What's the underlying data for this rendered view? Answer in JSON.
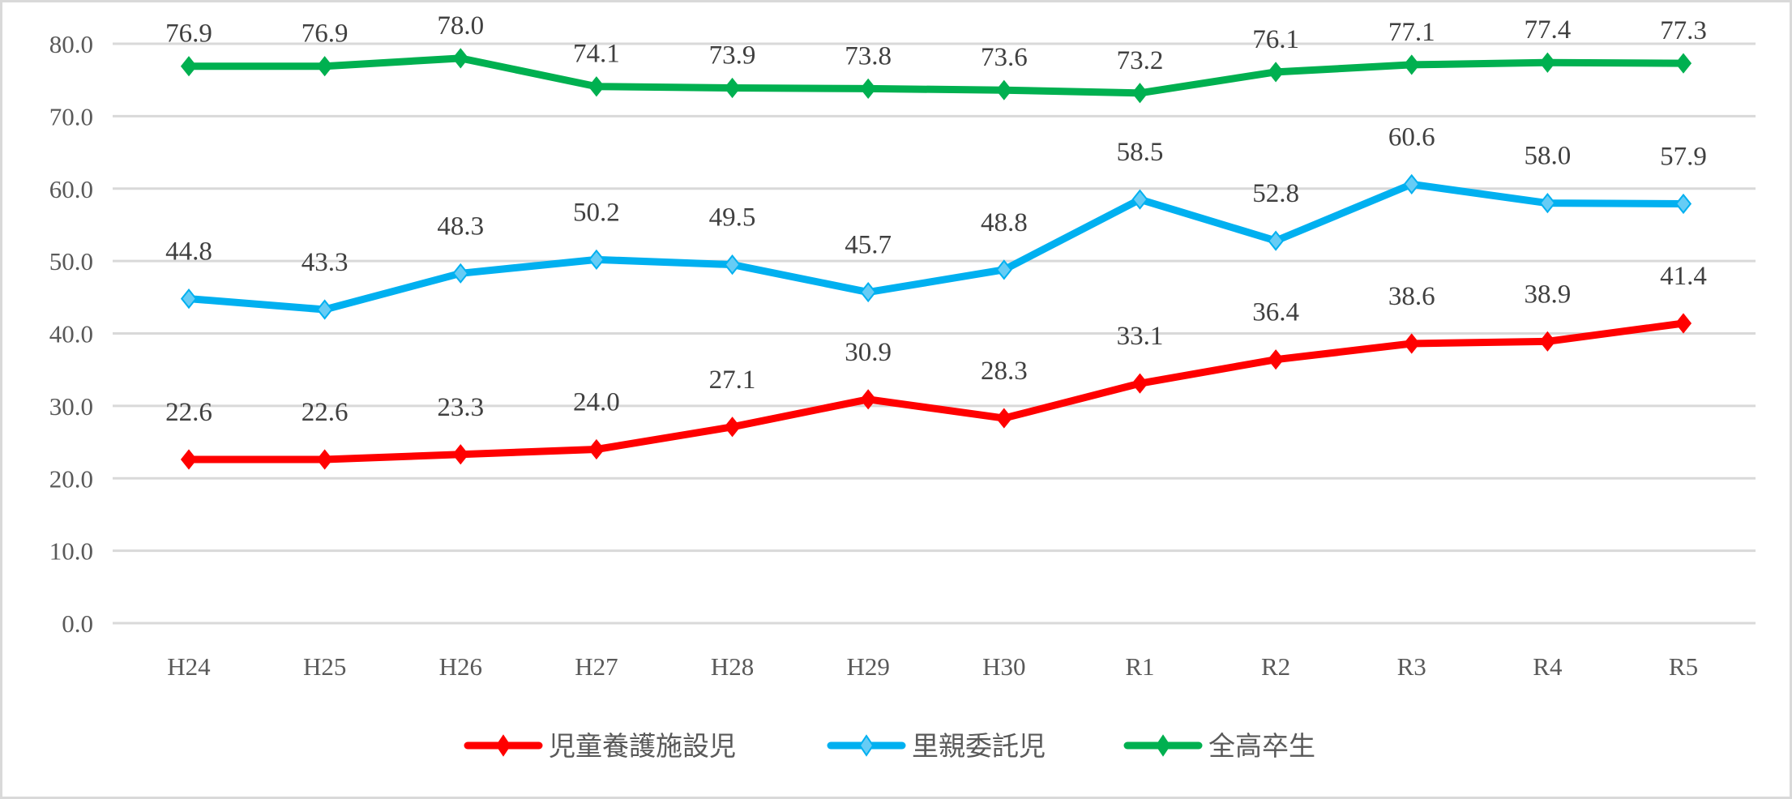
{
  "chart_data": {
    "type": "line",
    "title": "",
    "xlabel": "",
    "ylabel": "",
    "categories": [
      "H24",
      "H25",
      "H26",
      "H27",
      "H28",
      "H29",
      "H30",
      "R1",
      "R2",
      "R3",
      "R4",
      "R5"
    ],
    "ylim": [
      0,
      80
    ],
    "yticks": [
      "0.0",
      "10.0",
      "20.0",
      "30.0",
      "40.0",
      "50.0",
      "60.0",
      "70.0",
      "80.0"
    ],
    "grid": true,
    "legend_position": "bottom",
    "series": [
      {
        "name": "児童養護施設児",
        "color": "#ff0000",
        "marker_fill": "#ff0000",
        "values": [
          22.6,
          22.6,
          23.3,
          24.0,
          27.1,
          30.9,
          28.3,
          33.1,
          36.4,
          38.6,
          38.9,
          41.4
        ],
        "labels": [
          "22.6",
          "22.6",
          "23.3",
          "24.0",
          "27.1",
          "30.9",
          "28.3",
          "33.1",
          "36.4",
          "38.6",
          "38.9",
          "41.4"
        ]
      },
      {
        "name": "里親委託児",
        "color": "#00b0f0",
        "marker_fill": "#66ccf5",
        "values": [
          44.8,
          43.3,
          48.3,
          50.2,
          49.5,
          45.7,
          48.8,
          58.5,
          52.8,
          60.6,
          58.0,
          57.9
        ],
        "labels": [
          "44.8",
          "43.3",
          "48.3",
          "50.2",
          "49.5",
          "45.7",
          "48.8",
          "58.5",
          "52.8",
          "60.6",
          "58.0",
          "57.9"
        ]
      },
      {
        "name": "全高卒生",
        "color": "#00b050",
        "marker_fill": "#00b050",
        "values": [
          76.9,
          76.9,
          78.0,
          74.1,
          73.9,
          73.8,
          73.6,
          73.2,
          76.1,
          77.1,
          77.4,
          77.3
        ],
        "labels": [
          "76.9",
          "76.9",
          "78.0",
          "74.1",
          "73.9",
          "73.8",
          "73.6",
          "73.2",
          "76.1",
          "77.1",
          "77.4",
          "77.3"
        ]
      }
    ]
  }
}
